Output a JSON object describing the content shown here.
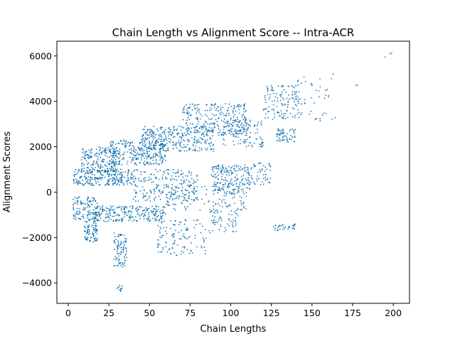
{
  "chart_data": {
    "type": "scatter",
    "title": "Chain Length vs Alignment Score -- Intra-ACR",
    "xlabel": "Chain Lengths",
    "ylabel": "Alignment Scores",
    "xlim": [
      -7,
      210
    ],
    "ylim": [
      -4900,
      6650
    ],
    "xticks": [
      0,
      25,
      50,
      75,
      100,
      125,
      150,
      175,
      200
    ],
    "yticks": [
      -4000,
      -2000,
      0,
      2000,
      4000,
      6000
    ],
    "grid": false,
    "marker_color": "#1f77b4",
    "clusters": [
      {
        "x": [
          3,
          40
        ],
        "y": [
          300,
          1000
        ],
        "n": 260
      },
      {
        "x": [
          8,
          30
        ],
        "y": [
          900,
          2000
        ],
        "n": 180
      },
      {
        "x": [
          25,
          60
        ],
        "y": [
          1200,
          2300
        ],
        "n": 300
      },
      {
        "x": [
          45,
          90
        ],
        "y": [
          1800,
          2900
        ],
        "n": 320
      },
      {
        "x": [
          70,
          110
        ],
        "y": [
          2500,
          3900
        ],
        "n": 260
      },
      {
        "x": [
          95,
          120
        ],
        "y": [
          2000,
          3200
        ],
        "n": 120
      },
      {
        "x": [
          88,
          112
        ],
        "y": [
          -100,
          1200
        ],
        "n": 200
      },
      {
        "x": [
          110,
          125
        ],
        "y": [
          300,
          1300
        ],
        "n": 60
      },
      {
        "x": [
          120,
          142
        ],
        "y": [
          3200,
          4700
        ],
        "n": 130
      },
      {
        "x": [
          128,
          140
        ],
        "y": [
          2200,
          2800
        ],
        "n": 60
      },
      {
        "x": [
          140,
          165
        ],
        "y": [
          3000,
          5200
        ],
        "n": 40
      },
      {
        "x": [
          3,
          18
        ],
        "y": [
          -1200,
          -200
        ],
        "n": 120
      },
      {
        "x": [
          10,
          18
        ],
        "y": [
          -2200,
          -1200
        ],
        "n": 90
      },
      {
        "x": [
          15,
          60
        ],
        "y": [
          -1300,
          -600
        ],
        "n": 260
      },
      {
        "x": [
          28,
          36
        ],
        "y": [
          -3300,
          -1800
        ],
        "n": 90
      },
      {
        "x": [
          30,
          34
        ],
        "y": [
          -4400,
          -4100
        ],
        "n": 10
      },
      {
        "x": [
          40,
          80
        ],
        "y": [
          -400,
          1000
        ],
        "n": 220
      },
      {
        "x": [
          55,
          85
        ],
        "y": [
          -2800,
          -1200
        ],
        "n": 120
      },
      {
        "x": [
          85,
          105
        ],
        "y": [
          -1800,
          -800
        ],
        "n": 60
      },
      {
        "x": [
          124,
          140
        ],
        "y": [
          -1700,
          -1400
        ],
        "n": 30
      },
      {
        "x": [
          60,
          110
        ],
        "y": [
          -800,
          400
        ],
        "n": 120
      }
    ],
    "points": [
      {
        "x": 195,
        "y": 5950
      },
      {
        "x": 198,
        "y": 6100
      },
      {
        "x": 199,
        "y": 6130
      },
      {
        "x": 177,
        "y": 4700
      },
      {
        "x": 178,
        "y": 4720
      },
      {
        "x": 163,
        "y": 5200
      },
      {
        "x": 155,
        "y": 4650
      },
      {
        "x": 150,
        "y": 4700
      },
      {
        "x": 152,
        "y": 3200
      },
      {
        "x": 155,
        "y": 3150
      },
      {
        "x": 31,
        "y": -4200
      },
      {
        "x": 32,
        "y": -4300
      },
      {
        "x": 33,
        "y": -4250
      }
    ]
  }
}
